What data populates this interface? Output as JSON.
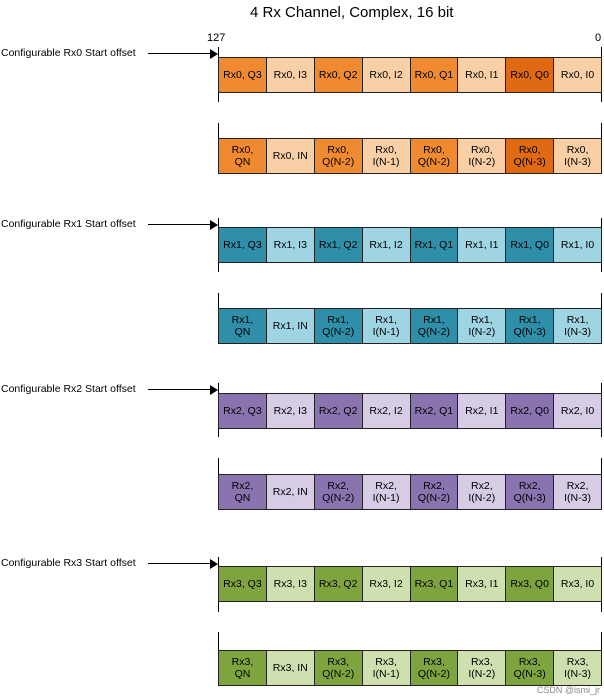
{
  "title": "4 Rx Channel, Complex, 16 bit",
  "bit_labels": {
    "msb": "127",
    "lsb": "0"
  },
  "colors": {
    "rx0": {
      "dark": "#f08a30",
      "light": "#f9cfa6",
      "darker": "#e06a14"
    },
    "rx1": {
      "dark": "#2f8fa8",
      "light": "#9fd4e2"
    },
    "rx2": {
      "dark": "#8a74b0",
      "light": "#d6cce6"
    },
    "rx3": {
      "dark": "#7ea440",
      "light": "#cfe0b0"
    }
  },
  "groups": [
    {
      "offset_label": "Configurable Rx0 Start offset",
      "rows": [
        [
          "Rx0, Q3",
          "Rx0, I3",
          "Rx0, Q2",
          "Rx0, I2",
          "Rx0, Q1",
          "Rx0, I1",
          "Rx0, Q0",
          "Rx0, I0"
        ],
        [
          "Rx0,\nQN",
          "Rx0, IN",
          "Rx0,\nQ(N-2)",
          "Rx0,\nI(N-1)",
          "Rx0,\nQ(N-2)",
          "Rx0,\nI(N-2)",
          "Rx0,\nQ(N-3)",
          "Rx0,\nI(N-3)"
        ]
      ]
    },
    {
      "offset_label": "Configurable Rx1 Start offset",
      "rows": [
        [
          "Rx1, Q3",
          "Rx1, I3",
          "Rx1, Q2",
          "Rx1, I2",
          "Rx1, Q1",
          "Rx1, I1",
          "Rx1, Q0",
          "Rx1, I0"
        ],
        [
          "Rx1,\nQN",
          "Rx1, IN",
          "Rx1,\nQ(N-2)",
          "Rx1,\nI(N-1)",
          "Rx1,\nQ(N-2)",
          "Rx1,\nI(N-2)",
          "Rx1,\nQ(N-3)",
          "Rx1,\nI(N-3)"
        ]
      ]
    },
    {
      "offset_label": "Configurable Rx2 Start offset",
      "rows": [
        [
          "Rx2, Q3",
          "Rx2, I3",
          "Rx2, Q2",
          "Rx2, I2",
          "Rx2, Q1",
          "Rx2, I1",
          "Rx2, Q0",
          "Rx2, I0"
        ],
        [
          "Rx2,\nQN",
          "Rx2, IN",
          "Rx2,\nQ(N-2)",
          "Rx2,\nI(N-1)",
          "Rx2,\nQ(N-2)",
          "Rx2,\nI(N-2)",
          "Rx2,\nQ(N-3)",
          "Rx2,\nI(N-3)"
        ]
      ]
    },
    {
      "offset_label": "Configurable Rx3 Start offset",
      "rows": [
        [
          "Rx3, Q3",
          "Rx3, I3",
          "Rx3, Q2",
          "Rx3, I2",
          "Rx3, Q1",
          "Rx3, I1",
          "Rx3, Q0",
          "Rx3, I0"
        ],
        [
          "Rx3,\nQN",
          "Rx3, IN",
          "Rx3,\nQ(N-2)",
          "Rx3,\nI(N-1)",
          "Rx3,\nQ(N-2)",
          "Rx3,\nI(N-2)",
          "Rx3,\nQ(N-3)",
          "Rx3,\nI(N-3)"
        ]
      ]
    }
  ],
  "watermark": "CSDN @ismi_jr"
}
